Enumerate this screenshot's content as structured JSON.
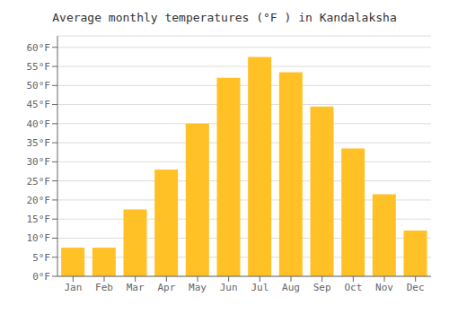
{
  "chart_data": {
    "type": "bar",
    "title": "Average monthly temperatures (°F ) in Kandalaksha",
    "categories": [
      "Jan",
      "Feb",
      "Mar",
      "Apr",
      "May",
      "Jun",
      "Jul",
      "Aug",
      "Sep",
      "Oct",
      "Nov",
      "Dec"
    ],
    "values": [
      7.5,
      7.5,
      17.5,
      28,
      40,
      52,
      57.5,
      53.5,
      44.5,
      33.5,
      21.5,
      12
    ],
    "color": "#FFC125",
    "ylim": [
      0,
      63
    ],
    "yticks": [
      {
        "value": 0,
        "label": "0°F"
      },
      {
        "value": 5,
        "label": "5°F"
      },
      {
        "value": 10,
        "label": "10°F"
      },
      {
        "value": 15,
        "label": "15°F"
      },
      {
        "value": 20,
        "label": "20°F"
      },
      {
        "value": 25,
        "label": "25°F"
      },
      {
        "value": 30,
        "label": "30°F"
      },
      {
        "value": 35,
        "label": "35°F"
      },
      {
        "value": 40,
        "label": "40°F"
      },
      {
        "value": 45,
        "label": "45°F"
      },
      {
        "value": 50,
        "label": "50°F"
      },
      {
        "value": 55,
        "label": "55°F"
      },
      {
        "value": 60,
        "label": "60°F"
      }
    ],
    "grid": true
  }
}
